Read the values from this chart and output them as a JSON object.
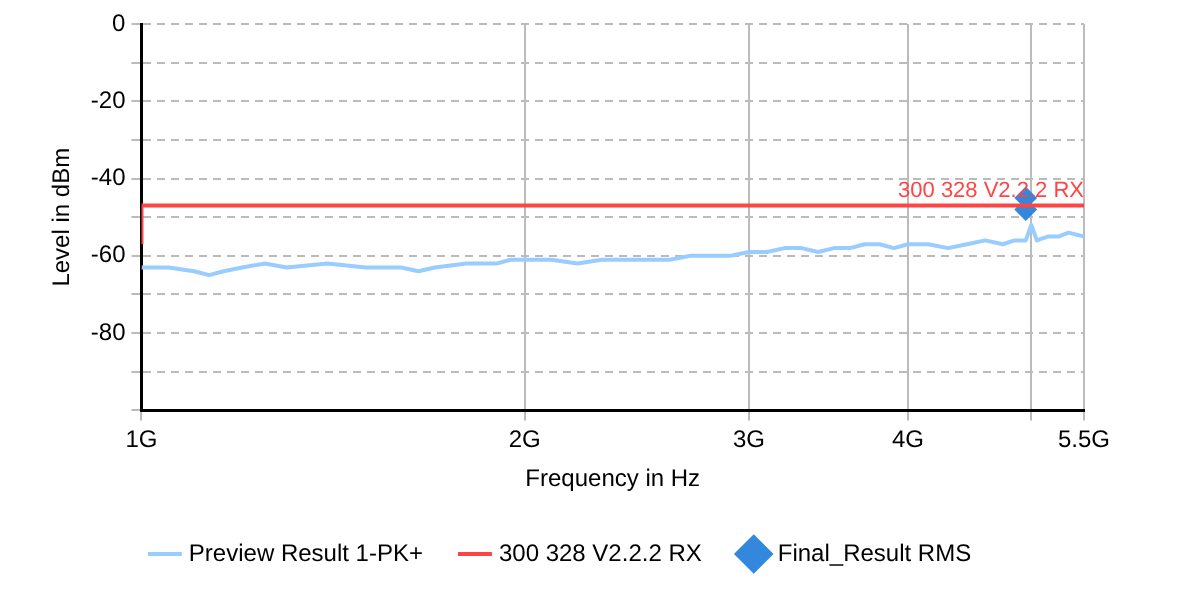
{
  "chart_data": {
    "type": "line",
    "xlabel": "Frequency in Hz",
    "ylabel": "Level in dBm",
    "log": "x",
    "xlim": [
      1,
      5.5
    ],
    "xticks": [
      {
        "value": 1,
        "label": "1G"
      },
      {
        "value": 2,
        "label": "2G"
      },
      {
        "value": 3,
        "label": "3G"
      },
      {
        "value": 4,
        "label": "4G"
      },
      {
        "value": 5,
        "label": null
      },
      {
        "value": 5.5,
        "label": "5.5G"
      }
    ],
    "ylim": [
      -100,
      0
    ],
    "yticks": [
      {
        "value": -100,
        "label": null
      },
      {
        "value": -90,
        "label": null
      },
      -80,
      {
        "value": -70,
        "label": null
      },
      -60,
      {
        "value": -50,
        "label": null
      },
      -40,
      {
        "value": -30,
        "label": null
      },
      -20,
      {
        "value": -10,
        "label": null
      },
      0
    ],
    "grid": true,
    "legend": "bottom",
    "series": [
      {
        "name": "Preview Result 1-PK+",
        "type": "line",
        "color": "#99ccff",
        "x": [
          1,
          1.05,
          1.1,
          1.13,
          1.16,
          1.2,
          1.25,
          1.3,
          1.4,
          1.5,
          1.6,
          1.65,
          1.7,
          1.8,
          1.9,
          1.95,
          2,
          2.1,
          2.2,
          2.3,
          2.4,
          2.5,
          2.6,
          2.7,
          2.8,
          2.9,
          3,
          3.1,
          3.2,
          3.3,
          3.4,
          3.5,
          3.6,
          3.7,
          3.8,
          3.9,
          4,
          4.15,
          4.3,
          4.45,
          4.6,
          4.75,
          4.85,
          4.95,
          5,
          5.05,
          5.15,
          5.25,
          5.35,
          5.5
        ],
        "values": [
          -63,
          -63,
          -64,
          -65,
          -64,
          -63,
          -62,
          -63,
          -62,
          -63,
          -63,
          -64,
          -63,
          -62,
          -62,
          -61,
          -61,
          -61,
          -62,
          -61,
          -61,
          -61,
          -61,
          -60,
          -60,
          -60,
          -59,
          -59,
          -58,
          -58,
          -59,
          -58,
          -58,
          -57,
          -57,
          -58,
          -57,
          -57,
          -58,
          -57,
          -56,
          -57,
          -56,
          -56,
          -52,
          -56,
          -55,
          -55,
          -54,
          -55
        ]
      },
      {
        "name": "300 328 V2.2.2 RX",
        "type": "line",
        "color": "#ff4444",
        "x": [
          1,
          1,
          5.5
        ],
        "values": [
          -57,
          -47,
          -47
        ]
      },
      {
        "name": "Final_Result RMS",
        "type": "scatter",
        "marker": "diamond",
        "color": "#3388dd",
        "x": [
          4.95,
          4.95
        ],
        "values": [
          -45,
          -48
        ]
      }
    ],
    "annotations": [
      {
        "text": "300 328 V2.2.2 RX",
        "x": 5.5,
        "y": -47
      }
    ]
  }
}
